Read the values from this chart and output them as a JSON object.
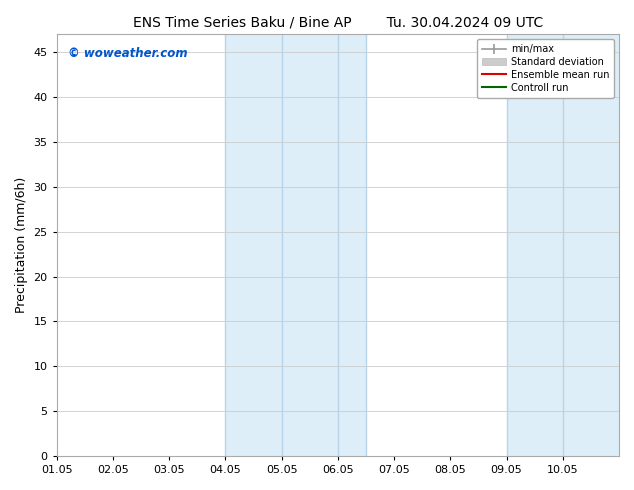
{
  "title_left": "ENS Time Series Baku / Bine AP",
  "title_right": "Tu. 30.04.2024 09 UTC",
  "ylabel": "Precipitation (mm/6h)",
  "watermark": "© woweather.com",
  "watermark_color": "#0055cc",
  "xlim_min": 0,
  "xlim_max": 10,
  "ylim_min": 0,
  "ylim_max": 47,
  "yticks": [
    0,
    5,
    10,
    15,
    20,
    25,
    30,
    35,
    40,
    45
  ],
  "xtick_labels": [
    "01.05",
    "02.05",
    "03.05",
    "04.05",
    "05.05",
    "06.05",
    "07.05",
    "08.05",
    "09.05",
    "10.05"
  ],
  "xtick_positions": [
    0,
    1,
    2,
    3,
    4,
    5,
    6,
    7,
    8,
    9
  ],
  "shaded_regions": [
    {
      "xmin": 3.0,
      "xmax": 5.5,
      "color": "#ddeef8"
    },
    {
      "xmin": 8.0,
      "xmax": 10.0,
      "color": "#ddeef8"
    }
  ],
  "vertical_lines": [
    {
      "x": 3.0,
      "color": "#b8d4e8",
      "lw": 1.0
    },
    {
      "x": 4.0,
      "color": "#b8d4e8",
      "lw": 1.0
    },
    {
      "x": 5.0,
      "color": "#b8d4e8",
      "lw": 1.0
    },
    {
      "x": 5.5,
      "color": "#b8d4e8",
      "lw": 1.0
    },
    {
      "x": 8.0,
      "color": "#b8d4e8",
      "lw": 1.0
    },
    {
      "x": 9.0,
      "color": "#b8d4e8",
      "lw": 1.0
    }
  ],
  "bg_color": "#ffffff",
  "plot_bg_color": "#ffffff",
  "grid_color": "#cccccc",
  "title_fontsize": 10,
  "tick_fontsize": 8,
  "ylabel_fontsize": 9
}
